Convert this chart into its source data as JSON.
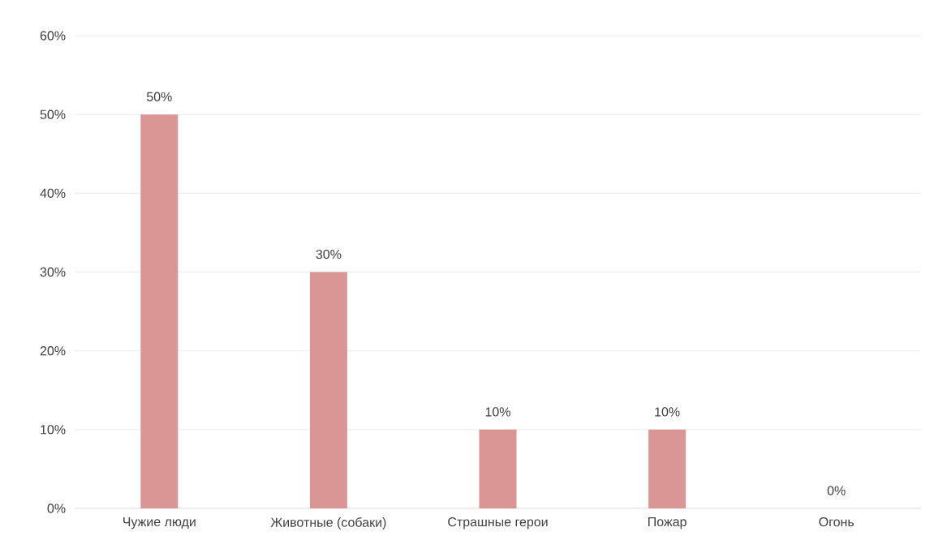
{
  "chart_data": {
    "type": "bar",
    "categories": [
      "Чужие люди",
      "Животные (собаки)",
      "Страшные герои",
      "Пожар",
      "Огонь"
    ],
    "values": [
      50,
      30,
      10,
      10,
      0
    ],
    "value_labels": [
      "50%",
      "30%",
      "10%",
      "10%",
      "0%"
    ],
    "color": "#d99694",
    "ylim": [
      0,
      60
    ],
    "yticks": [
      {
        "value": 0,
        "label": "0%"
      },
      {
        "value": 10,
        "label": "10%"
      },
      {
        "value": 20,
        "label": "20%"
      },
      {
        "value": 30,
        "label": "30%"
      },
      {
        "value": 40,
        "label": "40%"
      },
      {
        "value": 50,
        "label": "50%"
      },
      {
        "value": 60,
        "label": "60%"
      }
    ],
    "grid": "y"
  }
}
